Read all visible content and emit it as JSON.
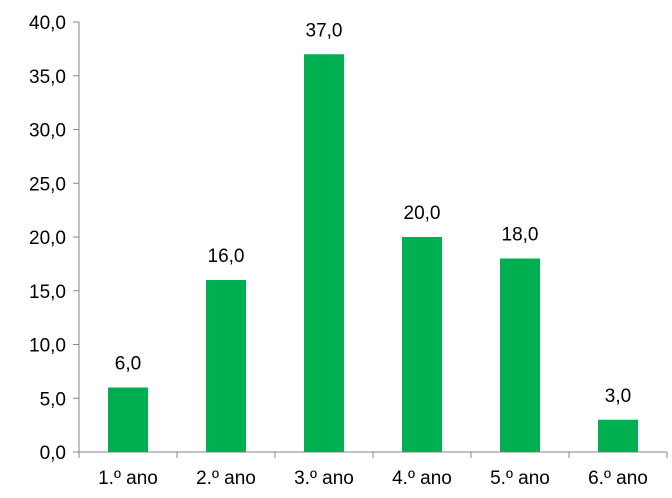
{
  "chart_data": {
    "type": "bar",
    "title": "",
    "xlabel": "",
    "ylabel": "",
    "categories": [
      "1.º ano",
      "2.º ano",
      "3.º ano",
      "4.º ano",
      "5.º ano",
      "6.º ano"
    ],
    "values": [
      6.0,
      16.0,
      37.0,
      20.0,
      18.0,
      3.0
    ],
    "value_labels": [
      "6,0",
      "16,0",
      "37,0",
      "20,0",
      "18,0",
      "3,0"
    ],
    "ylim": [
      0,
      40
    ],
    "yticks": [
      0,
      5,
      10,
      15,
      20,
      25,
      30,
      35,
      40
    ],
    "ytick_labels": [
      "0,0",
      "5,0",
      "10,0",
      "15,0",
      "20,0",
      "25,0",
      "30,0",
      "35,0",
      "40,0"
    ],
    "grid": false,
    "legend": "none",
    "bar_color": "#00B050"
  }
}
